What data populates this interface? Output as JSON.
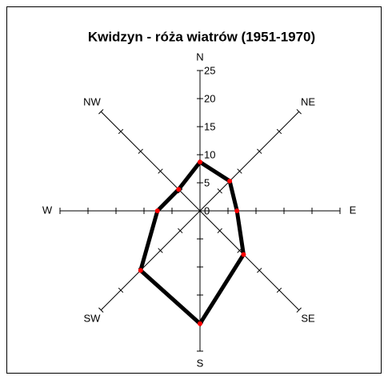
{
  "chart_data": {
    "type": "radar",
    "title": "Kwidzyn - róża wiatrów (1951-1970)",
    "categories": [
      "N",
      "NE",
      "E",
      "SE",
      "S",
      "SW",
      "W",
      "NW"
    ],
    "values": [
      8.7,
      7.5,
      6.6,
      11,
      20.1,
      15,
      7.6,
      5.4
    ],
    "color": "#000000",
    "marker_color": "#ff0000",
    "ylim": [
      0,
      25
    ],
    "yticks": [
      0,
      5,
      10,
      15,
      20,
      25
    ]
  }
}
